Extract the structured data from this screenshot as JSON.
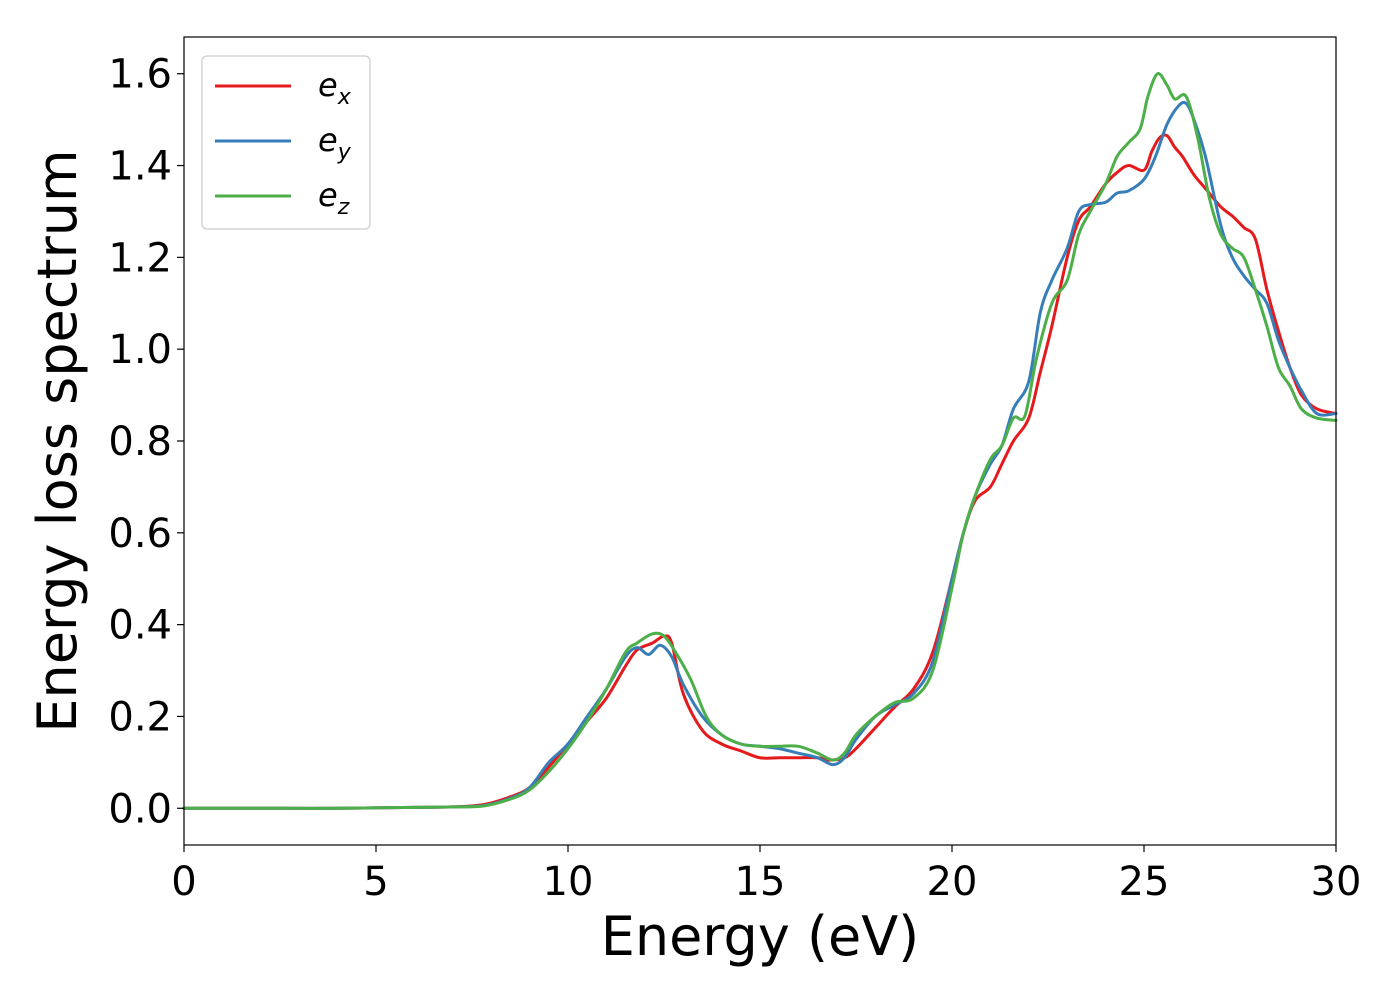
{
  "chart_data": {
    "type": "line",
    "title": "",
    "xlabel": "Energy (eV)",
    "ylabel": "Energy loss spectrum",
    "xlim": [
      0,
      30
    ],
    "ylim": [
      -0.08,
      1.68
    ],
    "xticks": [
      0,
      5,
      10,
      15,
      20,
      25,
      30
    ],
    "xtick_labels": [
      "0",
      "5",
      "10",
      "15",
      "20",
      "25",
      "30"
    ],
    "yticks": [
      0.0,
      0.2,
      0.4,
      0.6,
      0.8,
      1.0,
      1.2,
      1.4,
      1.6
    ],
    "ytick_labels": [
      "0.0",
      "0.2",
      "0.4",
      "0.6",
      "0.8",
      "1.0",
      "1.2",
      "1.4",
      "1.6"
    ],
    "grid": false,
    "legend_position": "top-left",
    "series": [
      {
        "name": "e_x",
        "label_main": "e",
        "label_sub": "x",
        "color": "#e41a1c",
        "x": [
          0,
          2,
          4,
          6,
          7,
          7.8,
          8.5,
          9,
          9.5,
          10,
          10.5,
          11,
          11.5,
          11.8,
          12.2,
          12.5,
          12.7,
          13,
          13.5,
          14,
          14.5,
          15,
          15.5,
          16,
          16.5,
          16.8,
          17.2,
          17.5,
          18,
          18.5,
          19,
          19.5,
          20,
          20.3,
          20.6,
          21,
          21.3,
          21.6,
          22,
          22.3,
          22.6,
          23,
          23.3,
          23.6,
          24,
          24.3,
          24.6,
          25,
          25.2,
          25.4,
          25.6,
          25.8,
          26,
          26.3,
          26.6,
          27,
          27.3,
          27.6,
          27.9,
          28.2,
          28.5,
          28.8,
          29.1,
          29.5,
          30
        ],
        "y": [
          0.0,
          0.0,
          0.0,
          0.002,
          0.003,
          0.008,
          0.025,
          0.045,
          0.09,
          0.14,
          0.19,
          0.24,
          0.31,
          0.345,
          0.36,
          0.375,
          0.36,
          0.25,
          0.17,
          0.14,
          0.125,
          0.11,
          0.11,
          0.11,
          0.11,
          0.105,
          0.11,
          0.13,
          0.175,
          0.22,
          0.26,
          0.34,
          0.5,
          0.6,
          0.67,
          0.7,
          0.75,
          0.8,
          0.85,
          0.95,
          1.05,
          1.2,
          1.28,
          1.31,
          1.36,
          1.385,
          1.4,
          1.39,
          1.43,
          1.46,
          1.465,
          1.44,
          1.42,
          1.38,
          1.35,
          1.31,
          1.29,
          1.265,
          1.24,
          1.13,
          1.04,
          0.96,
          0.9,
          0.87,
          0.86
        ]
      },
      {
        "name": "e_y",
        "label_main": "e",
        "label_sub": "y",
        "color": "#377eb8",
        "x": [
          0,
          2,
          4,
          6,
          7,
          7.8,
          8.5,
          9,
          9.5,
          10,
          10.5,
          11,
          11.5,
          11.8,
          12.1,
          12.4,
          12.7,
          13,
          13.5,
          14,
          14.5,
          15,
          15.5,
          16,
          16.5,
          16.9,
          17.2,
          17.5,
          18,
          18.5,
          19,
          19.5,
          20,
          20.3,
          20.6,
          21,
          21.3,
          21.6,
          22,
          22.3,
          22.6,
          23,
          23.3,
          23.6,
          24,
          24.3,
          24.6,
          25,
          25.3,
          25.6,
          25.9,
          26.1,
          26.3,
          26.6,
          27,
          27.3,
          27.6,
          27.9,
          28.2,
          28.5,
          28.8,
          29.1,
          29.5,
          30
        ],
        "y": [
          0.0,
          0.0,
          0.0,
          0.002,
          0.003,
          0.006,
          0.022,
          0.045,
          0.1,
          0.14,
          0.2,
          0.26,
          0.33,
          0.35,
          0.335,
          0.355,
          0.33,
          0.27,
          0.2,
          0.16,
          0.14,
          0.135,
          0.13,
          0.12,
          0.11,
          0.095,
          0.11,
          0.15,
          0.2,
          0.225,
          0.25,
          0.32,
          0.5,
          0.6,
          0.68,
          0.75,
          0.79,
          0.87,
          0.93,
          1.08,
          1.15,
          1.22,
          1.3,
          1.315,
          1.32,
          1.34,
          1.345,
          1.37,
          1.42,
          1.49,
          1.53,
          1.535,
          1.5,
          1.42,
          1.27,
          1.2,
          1.16,
          1.13,
          1.1,
          1.02,
          0.96,
          0.91,
          0.86,
          0.86
        ]
      },
      {
        "name": "e_z",
        "label_main": "e",
        "label_sub": "z",
        "color": "#4daf4a",
        "x": [
          0,
          2,
          4,
          6,
          7,
          7.8,
          8.5,
          9,
          9.5,
          10,
          10.5,
          11,
          11.5,
          11.8,
          12.2,
          12.5,
          12.8,
          13.2,
          13.6,
          14,
          14.5,
          15,
          15.5,
          16,
          16.5,
          16.9,
          17.2,
          17.5,
          18,
          18.5,
          19,
          19.5,
          20,
          20.3,
          20.6,
          21,
          21.3,
          21.6,
          21.9,
          22.2,
          22.6,
          23,
          23.3,
          23.6,
          24,
          24.3,
          24.6,
          24.9,
          25.1,
          25.35,
          25.6,
          25.8,
          26.1,
          26.4,
          26.7,
          27,
          27.3,
          27.6,
          27.9,
          28.2,
          28.5,
          28.8,
          29.1,
          29.5,
          30
        ],
        "y": [
          0.0,
          0.0,
          0.0,
          0.002,
          0.003,
          0.005,
          0.02,
          0.04,
          0.08,
          0.13,
          0.19,
          0.26,
          0.34,
          0.36,
          0.38,
          0.375,
          0.34,
          0.28,
          0.2,
          0.16,
          0.14,
          0.135,
          0.135,
          0.135,
          0.12,
          0.105,
          0.12,
          0.16,
          0.2,
          0.23,
          0.24,
          0.3,
          0.48,
          0.6,
          0.68,
          0.76,
          0.79,
          0.85,
          0.855,
          0.98,
          1.1,
          1.15,
          1.25,
          1.3,
          1.36,
          1.42,
          1.45,
          1.48,
          1.55,
          1.6,
          1.575,
          1.545,
          1.55,
          1.46,
          1.33,
          1.25,
          1.22,
          1.2,
          1.13,
          1.05,
          0.96,
          0.92,
          0.87,
          0.85,
          0.845
        ]
      }
    ]
  }
}
